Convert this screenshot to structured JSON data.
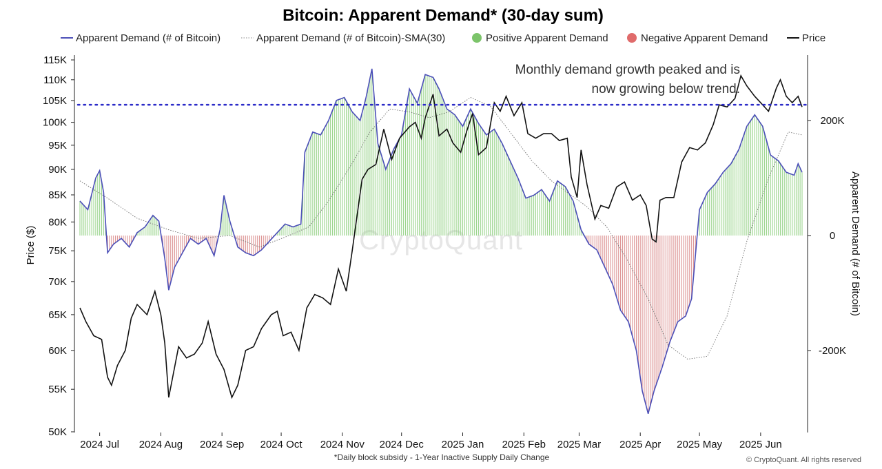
{
  "chart_data": {
    "type": "line",
    "title": "Bitcoin: Apparent Demand* (30-day sum)",
    "legend": [
      {
        "label": "Apparent Demand (# of Bitcoin)",
        "style": "line",
        "color": "#4b4fb8"
      },
      {
        "label": "Apparent Demand (# of Bitcoin)-SMA(30)",
        "style": "dotted",
        "color": "#888888"
      },
      {
        "label": "Positive Apparent Demand",
        "style": "dot",
        "color": "#7cc46a"
      },
      {
        "label": "Negative Apparent Demand",
        "style": "dot",
        "color": "#e06b6b"
      },
      {
        "label": "Price",
        "style": "line",
        "color": "#111111"
      }
    ],
    "legend_position": "top",
    "y_left": {
      "label": "Price ($)",
      "scale": "log",
      "ticks": [
        115000,
        110000,
        105000,
        100000,
        95000,
        90000,
        85000,
        80000,
        75000,
        70000,
        65000,
        60000,
        55000,
        50000
      ],
      "tick_labels": [
        "115K",
        "110K",
        "105K",
        "100K",
        "95K",
        "90K",
        "85K",
        "80K",
        "75K",
        "70K",
        "65K",
        "60K",
        "55K",
        "50K"
      ],
      "range": [
        50000,
        115000
      ]
    },
    "y_right": {
      "label": "Apparent Demand (# of Bitcoin)",
      "ticks": [
        200000,
        0,
        -200000
      ],
      "tick_labels": [
        "200K",
        "0",
        "-200K"
      ],
      "range": [
        -310000,
        310000
      ]
    },
    "x_ticks": [
      "2024 Jul",
      "2024 Aug",
      "2024 Sep",
      "2024 Oct",
      "2024 Nov",
      "2024 Dec",
      "2025 Jan",
      "2025 Feb",
      "2025 Mar",
      "2025 Apr",
      "2025 May",
      "2025 Jun"
    ],
    "x_tick_dates": [
      "2024-07-01",
      "2024-08-01",
      "2024-09-01",
      "2024-10-01",
      "2024-11-01",
      "2024-12-01",
      "2025-01-01",
      "2025-02-01",
      "2025-03-01",
      "2025-04-01",
      "2025-05-01",
      "2025-06-01"
    ],
    "x_range": [
      "2024-06-21",
      "2025-06-22"
    ],
    "reference_line": {
      "axis": "price",
      "value": 104000,
      "style": "dotted",
      "color": "#2a2ac8"
    },
    "annotation": [
      "Monthly demand growth peaked and is",
      "now growing below trend."
    ],
    "footnote": "*Daily block subsidy - 1-Year Inactive Supply Daily Change",
    "credit": "© CryptoQuant. All rights reserved",
    "watermark": "CryptoQuant",
    "price": [
      [
        "2024-06-21",
        66000
      ],
      [
        "2024-06-24",
        64000
      ],
      [
        "2024-06-28",
        62000
      ],
      [
        "2024-07-02",
        61500
      ],
      [
        "2024-07-05",
        56500
      ],
      [
        "2024-07-07",
        55500
      ],
      [
        "2024-07-10",
        58000
      ],
      [
        "2024-07-14",
        60000
      ],
      [
        "2024-07-17",
        64500
      ],
      [
        "2024-07-20",
        66500
      ],
      [
        "2024-07-25",
        65000
      ],
      [
        "2024-07-29",
        68500
      ],
      [
        "2024-08-01",
        65000
      ],
      [
        "2024-08-03",
        61000
      ],
      [
        "2024-08-05",
        54000
      ],
      [
        "2024-08-07",
        56500
      ],
      [
        "2024-08-10",
        60500
      ],
      [
        "2024-08-14",
        59000
      ],
      [
        "2024-08-18",
        59500
      ],
      [
        "2024-08-22",
        61000
      ],
      [
        "2024-08-25",
        64000
      ],
      [
        "2024-08-29",
        59500
      ],
      [
        "2024-09-02",
        57500
      ],
      [
        "2024-09-06",
        54000
      ],
      [
        "2024-09-09",
        55500
      ],
      [
        "2024-09-13",
        60000
      ],
      [
        "2024-09-17",
        60500
      ],
      [
        "2024-09-21",
        63000
      ],
      [
        "2024-09-26",
        65000
      ],
      [
        "2024-09-29",
        65500
      ],
      [
        "2024-10-02",
        62000
      ],
      [
        "2024-10-06",
        62500
      ],
      [
        "2024-10-10",
        60000
      ],
      [
        "2024-10-14",
        66000
      ],
      [
        "2024-10-18",
        68000
      ],
      [
        "2024-10-22",
        67500
      ],
      [
        "2024-10-26",
        66500
      ],
      [
        "2024-10-30",
        72000
      ],
      [
        "2024-11-03",
        68500
      ],
      [
        "2024-11-06",
        75000
      ],
      [
        "2024-11-11",
        88000
      ],
      [
        "2024-11-14",
        90000
      ],
      [
        "2024-11-18",
        91000
      ],
      [
        "2024-11-22",
        98500
      ],
      [
        "2024-11-26",
        92000
      ],
      [
        "2024-11-30",
        96500
      ],
      [
        "2024-12-05",
        99000
      ],
      [
        "2024-12-08",
        100000
      ],
      [
        "2024-12-11",
        96500
      ],
      [
        "2024-12-13",
        101000
      ],
      [
        "2024-12-17",
        106500
      ],
      [
        "2024-12-20",
        97000
      ],
      [
        "2024-12-24",
        98500
      ],
      [
        "2024-12-27",
        95500
      ],
      [
        "2024-12-31",
        93500
      ],
      [
        "2025-01-03",
        98000
      ],
      [
        "2025-01-06",
        102000
      ],
      [
        "2025-01-09",
        93000
      ],
      [
        "2025-01-13",
        94500
      ],
      [
        "2025-01-17",
        104500
      ],
      [
        "2025-01-20",
        102500
      ],
      [
        "2025-01-23",
        106000
      ],
      [
        "2025-01-27",
        101500
      ],
      [
        "2025-01-31",
        104500
      ],
      [
        "2025-02-03",
        97500
      ],
      [
        "2025-02-07",
        96500
      ],
      [
        "2025-02-11",
        97500
      ],
      [
        "2025-02-15",
        97500
      ],
      [
        "2025-02-19",
        96000
      ],
      [
        "2025-02-23",
        96500
      ],
      [
        "2025-02-25",
        88500
      ],
      [
        "2025-02-28",
        84500
      ],
      [
        "2025-03-02",
        94000
      ],
      [
        "2025-03-05",
        87000
      ],
      [
        "2025-03-09",
        80500
      ],
      [
        "2025-03-12",
        83000
      ],
      [
        "2025-03-16",
        82500
      ],
      [
        "2025-03-20",
        86500
      ],
      [
        "2025-03-24",
        87500
      ],
      [
        "2025-03-28",
        84000
      ],
      [
        "2025-04-01",
        85000
      ],
      [
        "2025-04-04",
        83000
      ],
      [
        "2025-04-07",
        77000
      ],
      [
        "2025-04-09",
        76500
      ],
      [
        "2025-04-11",
        84000
      ],
      [
        "2025-04-14",
        84500
      ],
      [
        "2025-04-18",
        84500
      ],
      [
        "2025-04-22",
        91500
      ],
      [
        "2025-04-26",
        94500
      ],
      [
        "2025-04-30",
        94000
      ],
      [
        "2025-05-04",
        95500
      ],
      [
        "2025-05-08",
        99500
      ],
      [
        "2025-05-11",
        104000
      ],
      [
        "2025-05-15",
        103500
      ],
      [
        "2025-05-19",
        105500
      ],
      [
        "2025-05-22",
        111000
      ],
      [
        "2025-05-25",
        108500
      ],
      [
        "2025-05-29",
        106000
      ],
      [
        "2025-06-02",
        104000
      ],
      [
        "2025-06-05",
        102500
      ],
      [
        "2025-06-09",
        108000
      ],
      [
        "2025-06-11",
        110000
      ],
      [
        "2025-06-14",
        106000
      ],
      [
        "2025-06-17",
        104500
      ],
      [
        "2025-06-20",
        106000
      ],
      [
        "2025-06-22",
        103500
      ]
    ],
    "apparent_demand": [
      [
        "2024-06-21",
        60000
      ],
      [
        "2024-06-25",
        45000
      ],
      [
        "2024-06-29",
        100000
      ],
      [
        "2024-07-01",
        113000
      ],
      [
        "2024-07-03",
        75000
      ],
      [
        "2024-07-05",
        -30000
      ],
      [
        "2024-07-08",
        -15000
      ],
      [
        "2024-07-12",
        -5000
      ],
      [
        "2024-07-16",
        -20000
      ],
      [
        "2024-07-20",
        5000
      ],
      [
        "2024-07-24",
        15000
      ],
      [
        "2024-07-28",
        35000
      ],
      [
        "2024-07-31",
        25000
      ],
      [
        "2024-08-03",
        -40000
      ],
      [
        "2024-08-05",
        -95000
      ],
      [
        "2024-08-08",
        -55000
      ],
      [
        "2024-08-12",
        -30000
      ],
      [
        "2024-08-16",
        -5000
      ],
      [
        "2024-08-20",
        -15000
      ],
      [
        "2024-08-24",
        -5000
      ],
      [
        "2024-08-28",
        -35000
      ],
      [
        "2024-08-31",
        10000
      ],
      [
        "2024-09-02",
        70000
      ],
      [
        "2024-09-05",
        25000
      ],
      [
        "2024-09-09",
        -20000
      ],
      [
        "2024-09-13",
        -30000
      ],
      [
        "2024-09-17",
        -35000
      ],
      [
        "2024-09-21",
        -25000
      ],
      [
        "2024-09-25",
        -10000
      ],
      [
        "2024-09-29",
        5000
      ],
      [
        "2024-10-03",
        20000
      ],
      [
        "2024-10-07",
        15000
      ],
      [
        "2024-10-11",
        20000
      ],
      [
        "2024-10-13",
        145000
      ],
      [
        "2024-10-17",
        180000
      ],
      [
        "2024-10-21",
        175000
      ],
      [
        "2024-10-25",
        200000
      ],
      [
        "2024-10-29",
        235000
      ],
      [
        "2024-11-02",
        240000
      ],
      [
        "2024-11-06",
        215000
      ],
      [
        "2024-11-10",
        200000
      ],
      [
        "2024-11-13",
        240000
      ],
      [
        "2024-11-16",
        290000
      ],
      [
        "2024-11-19",
        160000
      ],
      [
        "2024-11-23",
        115000
      ],
      [
        "2024-11-27",
        150000
      ],
      [
        "2024-12-01",
        175000
      ],
      [
        "2024-12-05",
        255000
      ],
      [
        "2024-12-09",
        230000
      ],
      [
        "2024-12-13",
        280000
      ],
      [
        "2024-12-17",
        275000
      ],
      [
        "2024-12-20",
        255000
      ],
      [
        "2024-12-24",
        220000
      ],
      [
        "2024-12-28",
        210000
      ],
      [
        "2025-01-01",
        190000
      ],
      [
        "2025-01-05",
        220000
      ],
      [
        "2025-01-09",
        195000
      ],
      [
        "2025-01-13",
        175000
      ],
      [
        "2025-01-17",
        185000
      ],
      [
        "2025-01-21",
        160000
      ],
      [
        "2025-01-25",
        130000
      ],
      [
        "2025-01-29",
        100000
      ],
      [
        "2025-02-02",
        65000
      ],
      [
        "2025-02-06",
        70000
      ],
      [
        "2025-02-10",
        80000
      ],
      [
        "2025-02-14",
        60000
      ],
      [
        "2025-02-18",
        95000
      ],
      [
        "2025-02-22",
        85000
      ],
      [
        "2025-02-26",
        60000
      ],
      [
        "2025-03-02",
        10000
      ],
      [
        "2025-03-06",
        -15000
      ],
      [
        "2025-03-10",
        -25000
      ],
      [
        "2025-03-14",
        -55000
      ],
      [
        "2025-03-18",
        -85000
      ],
      [
        "2025-03-22",
        -130000
      ],
      [
        "2025-03-26",
        -150000
      ],
      [
        "2025-03-30",
        -200000
      ],
      [
        "2025-04-02",
        -270000
      ],
      [
        "2025-04-05",
        -310000
      ],
      [
        "2025-04-08",
        -270000
      ],
      [
        "2025-04-12",
        -230000
      ],
      [
        "2025-04-16",
        -185000
      ],
      [
        "2025-04-20",
        -150000
      ],
      [
        "2025-04-24",
        -140000
      ],
      [
        "2025-04-27",
        -110000
      ],
      [
        "2025-05-01",
        45000
      ],
      [
        "2025-05-05",
        75000
      ],
      [
        "2025-05-09",
        90000
      ],
      [
        "2025-05-13",
        110000
      ],
      [
        "2025-05-17",
        125000
      ],
      [
        "2025-05-21",
        150000
      ],
      [
        "2025-05-25",
        190000
      ],
      [
        "2025-05-29",
        210000
      ],
      [
        "2025-06-02",
        190000
      ],
      [
        "2025-06-06",
        140000
      ],
      [
        "2025-06-10",
        130000
      ],
      [
        "2025-06-14",
        110000
      ],
      [
        "2025-06-18",
        105000
      ],
      [
        "2025-06-20",
        125000
      ],
      [
        "2025-06-22",
        110000
      ]
    ],
    "apparent_demand_sma30": [
      [
        "2024-06-21",
        95000
      ],
      [
        "2024-07-05",
        65000
      ],
      [
        "2024-07-20",
        30000
      ],
      [
        "2024-08-05",
        10000
      ],
      [
        "2024-08-20",
        -5000
      ],
      [
        "2024-09-05",
        0
      ],
      [
        "2024-09-20",
        -20000
      ],
      [
        "2024-10-05",
        0
      ],
      [
        "2024-10-15",
        15000
      ],
      [
        "2024-10-25",
        60000
      ],
      [
        "2024-11-05",
        120000
      ],
      [
        "2024-11-15",
        180000
      ],
      [
        "2024-11-25",
        220000
      ],
      [
        "2024-12-05",
        215000
      ],
      [
        "2024-12-15",
        205000
      ],
      [
        "2024-12-25",
        215000
      ],
      [
        "2025-01-05",
        240000
      ],
      [
        "2025-01-15",
        225000
      ],
      [
        "2025-01-25",
        180000
      ],
      [
        "2025-02-05",
        130000
      ],
      [
        "2025-02-15",
        95000
      ],
      [
        "2025-02-25",
        70000
      ],
      [
        "2025-03-05",
        50000
      ],
      [
        "2025-03-15",
        15000
      ],
      [
        "2025-03-25",
        -40000
      ],
      [
        "2025-04-05",
        -110000
      ],
      [
        "2025-04-15",
        -190000
      ],
      [
        "2025-04-25",
        -215000
      ],
      [
        "2025-05-05",
        -210000
      ],
      [
        "2025-05-15",
        -140000
      ],
      [
        "2025-05-25",
        -10000
      ],
      [
        "2025-06-05",
        100000
      ],
      [
        "2025-06-15",
        180000
      ],
      [
        "2025-06-22",
        175000
      ]
    ]
  }
}
